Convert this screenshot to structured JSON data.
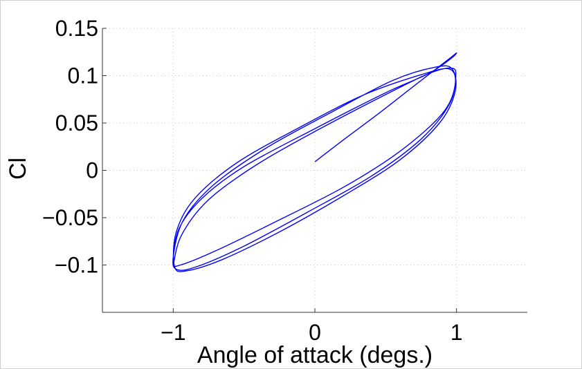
{
  "chart_data": {
    "type": "line",
    "title": "",
    "xlabel": "Angle of attack (degs.)",
    "ylabel": "Cl",
    "xlim": [
      -1.5,
      1.5
    ],
    "ylim": [
      -0.15,
      0.15
    ],
    "xticks": [
      -1,
      0,
      1
    ],
    "xtick_labels": [
      "−1",
      "0",
      "1"
    ],
    "yticks": [
      -0.1,
      -0.05,
      0,
      0.05,
      0.1,
      0.15
    ],
    "ytick_labels": [
      "−0.1",
      "−0.05",
      "0",
      "0.05",
      "0.1",
      "0.15"
    ],
    "grid": true,
    "legend": "none",
    "line_color": "#0000ff",
    "series": [
      {
        "x": [
          0.0,
          0.2,
          0.45,
          0.75,
          0.95,
          1.0,
          0.96,
          0.8,
          0.5,
          0.0,
          -0.5,
          -0.8,
          -0.96,
          -1.0,
          -0.95,
          -0.7,
          -0.3,
          0.2,
          0.6,
          0.9,
          0.99,
          0.95,
          0.75,
          0.35,
          -0.1,
          -0.55,
          -0.85,
          -0.98,
          -0.99,
          -0.9,
          -0.65,
          -0.25,
          0.2,
          0.6,
          0.88,
          0.99,
          0.97,
          0.85,
          0.55,
          0.1,
          -0.35,
          -0.72,
          -0.93,
          -1.0,
          -0.97,
          -0.82,
          -0.5,
          -0.05,
          0.4,
          0.75,
          0.95,
          0.995,
          0.96,
          0.8,
          0.5,
          0.05,
          -0.4,
          -0.75,
          -0.94,
          -1.0
        ],
        "y": [
          0.009,
          0.032,
          0.06,
          0.095,
          0.118,
          0.124,
          0.118,
          0.102,
          0.082,
          0.044,
          0.004,
          -0.03,
          -0.062,
          -0.097,
          -0.1,
          -0.085,
          -0.056,
          -0.018,
          0.02,
          0.06,
          0.09,
          0.107,
          0.101,
          0.08,
          0.046,
          0.008,
          -0.03,
          -0.066,
          -0.102,
          -0.106,
          -0.094,
          -0.065,
          -0.027,
          0.011,
          0.05,
          0.083,
          0.107,
          0.109,
          0.095,
          0.06,
          0.023,
          -0.016,
          -0.053,
          -0.092,
          -0.105,
          -0.101,
          -0.08,
          -0.044,
          -0.006,
          0.033,
          0.07,
          0.1,
          0.108,
          0.102,
          0.08,
          0.045,
          0.007,
          -0.031,
          -0.068,
          -0.1
        ]
      }
    ]
  }
}
